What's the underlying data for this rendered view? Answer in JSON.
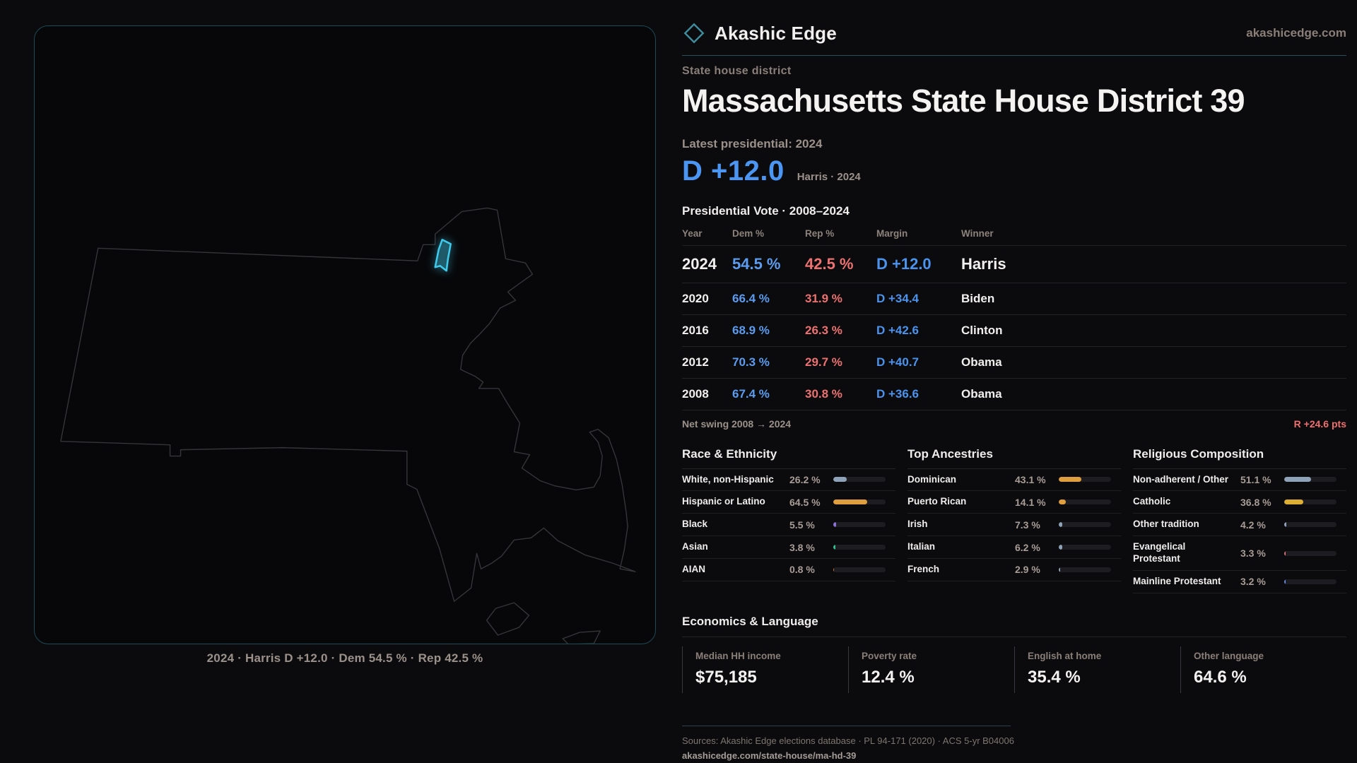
{
  "brand": {
    "name": "Akashic Edge",
    "domain": "akashicedge.com"
  },
  "eyebrow": "State house district",
  "title": "Massachusetts State House District 39",
  "latest_label": "Latest presidential: 2024",
  "headline_margin": {
    "value": "D +12.0",
    "sub": "Harris · 2024"
  },
  "pres_table": {
    "label": "Presidential Vote · 2008–2024",
    "headers": [
      "Year",
      "Dem %",
      "Rep %",
      "Margin",
      "Winner"
    ],
    "rows": [
      {
        "year": "2024",
        "dem": "54.5 %",
        "rep": "42.5 %",
        "margin": "D +12.0",
        "winner": "Harris"
      },
      {
        "year": "2020",
        "dem": "66.4 %",
        "rep": "31.9 %",
        "margin": "D +34.4",
        "winner": "Biden"
      },
      {
        "year": "2016",
        "dem": "68.9 %",
        "rep": "26.3 %",
        "margin": "D +42.6",
        "winner": "Clinton"
      },
      {
        "year": "2012",
        "dem": "70.3 %",
        "rep": "29.7 %",
        "margin": "D +40.7",
        "winner": "Obama"
      },
      {
        "year": "2008",
        "dem": "67.4 %",
        "rep": "30.8 %",
        "margin": "D +36.6",
        "winner": "Obama"
      }
    ]
  },
  "net_swing": {
    "label": "Net swing 2008 → 2024",
    "value": "R +24.6 pts"
  },
  "demographics": {
    "race": {
      "title": "Race & Ethnicity",
      "rows": [
        {
          "label": "White, non-Hispanic",
          "value": "26.2 %",
          "pct": 26.2,
          "color": "#8fa3b8"
        },
        {
          "label": "Hispanic or Latino",
          "value": "64.5 %",
          "pct": 64.5,
          "color": "#e09f3e"
        },
        {
          "label": "Black",
          "value": "5.5 %",
          "pct": 5.5,
          "color": "#8b6fd8"
        },
        {
          "label": "Asian",
          "value": "3.8 %",
          "pct": 3.8,
          "color": "#2fbf8f"
        },
        {
          "label": "AIAN",
          "value": "0.8 %",
          "pct": 0.8,
          "color": "#c7802e"
        }
      ]
    },
    "ancestries": {
      "title": "Top Ancestries",
      "rows": [
        {
          "label": "Dominican",
          "value": "43.1 %",
          "pct": 43.1,
          "color": "#e09f3e"
        },
        {
          "label": "Puerto Rican",
          "value": "14.1 %",
          "pct": 14.1,
          "color": "#e09f3e"
        },
        {
          "label": "Irish",
          "value": "7.3 %",
          "pct": 7.3,
          "color": "#8fa3b8"
        },
        {
          "label": "Italian",
          "value": "6.2 %",
          "pct": 6.2,
          "color": "#8fa3b8"
        },
        {
          "label": "French",
          "value": "2.9 %",
          "pct": 2.9,
          "color": "#8fa3b8"
        }
      ]
    },
    "religion": {
      "title": "Religious Composition",
      "rows": [
        {
          "label": "Non-adherent / Other",
          "value": "51.1 %",
          "pct": 51.1,
          "color": "#8fa3b8"
        },
        {
          "label": "Catholic",
          "value": "36.8 %",
          "pct": 36.8,
          "color": "#ddb033"
        },
        {
          "label": "Other tradition",
          "value": "4.2 %",
          "pct": 4.2,
          "color": "#8fa3b8"
        },
        {
          "label": "Evangelical Protestant",
          "value": "3.3 %",
          "pct": 3.3,
          "color": "#e06c75"
        },
        {
          "label": "Mainline Protestant",
          "value": "3.2 %",
          "pct": 3.2,
          "color": "#5b8def"
        }
      ]
    }
  },
  "economics": {
    "title": "Economics & Language",
    "stats": [
      {
        "label": "Median HH income",
        "value": "$75,185"
      },
      {
        "label": "Poverty rate",
        "value": "12.4 %"
      },
      {
        "label": "English at home",
        "value": "35.4 %"
      },
      {
        "label": "Other language",
        "value": "64.6 %"
      }
    ]
  },
  "sources": {
    "line1": "Sources: Akashic Edge elections database · PL 94-171 (2020) · ACS 5-yr B04006",
    "line2": "akashicedge.com/state-house/ma-hd-39"
  },
  "map": {
    "caption": "2024 · Harris D +12.0 · Dem 54.5 % · Rep 42.5 %"
  },
  "colors": {
    "dem_blue": "#5b9cf0",
    "rep_red": "#ee7171",
    "margin_blue": "#4a93ee",
    "swing_red": "#ef6f6f",
    "accent_teal": "#26525c",
    "district_highlight": "#3ec9ea",
    "bar_amber": "#e09f3e",
    "bar_slate": "#8fa3b8",
    "bar_purple": "#8b6fd8",
    "bar_green": "#2fbf8f",
    "bar_gold": "#ddb033"
  },
  "chart_data": [
    {
      "type": "table",
      "title": "Presidential Vote · 2008–2024",
      "columns": [
        "Year",
        "Dem %",
        "Rep %",
        "Margin",
        "Winner"
      ],
      "rows": [
        [
          2024,
          54.5,
          42.5,
          "D +12.0",
          "Harris"
        ],
        [
          2020,
          66.4,
          31.9,
          "D +34.4",
          "Biden"
        ],
        [
          2016,
          68.9,
          26.3,
          "D +42.6",
          "Clinton"
        ],
        [
          2012,
          70.3,
          29.7,
          "D +40.7",
          "Obama"
        ],
        [
          2008,
          67.4,
          30.8,
          "D +36.6",
          "Obama"
        ]
      ],
      "annotation": {
        "label": "Net swing 2008 → 2024",
        "value": "R +24.6 pts"
      }
    },
    {
      "type": "bar",
      "title": "Race & Ethnicity",
      "xlim": [
        0,
        100
      ],
      "categories": [
        "White, non-Hispanic",
        "Hispanic or Latino",
        "Black",
        "Asian",
        "AIAN"
      ],
      "values": [
        26.2,
        64.5,
        5.5,
        3.8,
        0.8
      ]
    },
    {
      "type": "bar",
      "title": "Top Ancestries",
      "xlim": [
        0,
        100
      ],
      "categories": [
        "Dominican",
        "Puerto Rican",
        "Irish",
        "Italian",
        "French"
      ],
      "values": [
        43.1,
        14.1,
        7.3,
        6.2,
        2.9
      ]
    },
    {
      "type": "bar",
      "title": "Religious Composition",
      "xlim": [
        0,
        100
      ],
      "categories": [
        "Non-adherent / Other",
        "Catholic",
        "Other tradition",
        "Evangelical Protestant",
        "Mainline Protestant"
      ],
      "values": [
        51.1,
        36.8,
        4.2,
        3.3,
        3.2
      ]
    },
    {
      "type": "bar",
      "title": "Economics & Language",
      "categories": [
        "Median HH income",
        "Poverty rate",
        "English at home",
        "Other language"
      ],
      "values": [
        "$75,185",
        12.4,
        35.4,
        64.6
      ]
    }
  ]
}
